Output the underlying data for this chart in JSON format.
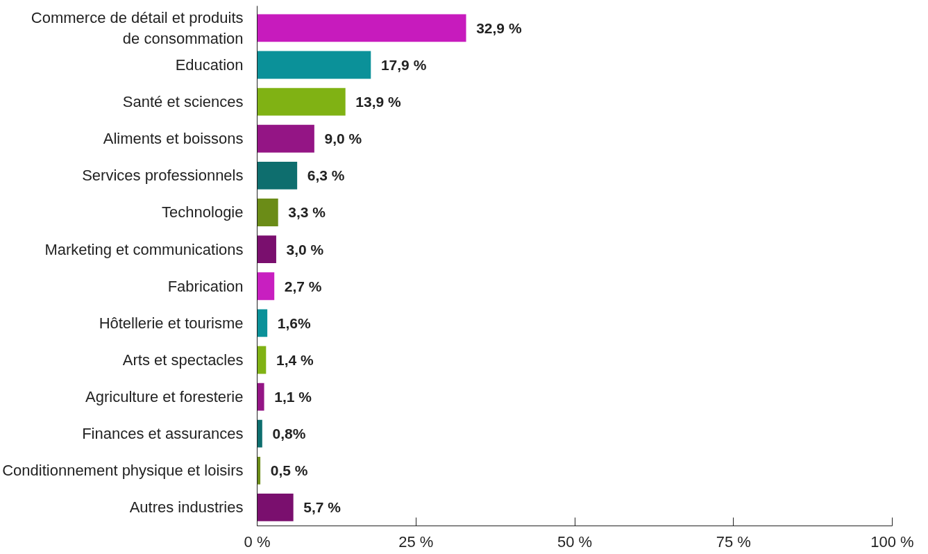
{
  "chart_data": {
    "type": "bar",
    "orientation": "horizontal",
    "categories": [
      "Commerce de détail et produits\nde consommation",
      "Education",
      "Santé et sciences",
      "Aliments et boissons",
      "Services professionnels",
      "Technologie",
      "Marketing et communications",
      "Fabrication",
      "Hôtellerie et tourisme",
      "Arts et spectacles",
      "Agriculture et foresterie",
      "Finances et assurances",
      "Conditionnement physique et loisirs",
      "Autres industries"
    ],
    "values": [
      32.9,
      17.9,
      13.9,
      9.0,
      6.3,
      3.3,
      3.0,
      2.7,
      1.6,
      1.4,
      1.1,
      0.8,
      0.5,
      5.7
    ],
    "colors": [
      "#c71bbd",
      "#0b9199",
      "#80b214",
      "#941585",
      "#0e6e6e",
      "#6b8c17",
      "#7a0f6e",
      "#c81fc0",
      "#0b9199",
      "#80b214",
      "#941585",
      "#0e6e6e",
      "#6b8c17",
      "#7a0f6e"
    ],
    "value_labels": [
      "32,9 %",
      "17,9 %",
      "13,9 %",
      "9,0 %",
      "6,3 %",
      "3,3 %",
      "3,0 %",
      "2,7  %",
      "1,6%",
      "1,4 %",
      "1,1  %",
      "0,8%",
      "0,5 %",
      "5,7 %"
    ],
    "xlim": [
      0,
      100
    ],
    "xticks": [
      {
        "value": 0,
        "label": "0 %"
      },
      {
        "value": 25,
        "label": "25 %"
      },
      {
        "value": 50,
        "label": "50 %"
      },
      {
        "value": 75,
        "label": "75 %"
      },
      {
        "value": 100,
        "label": "100 %"
      }
    ]
  }
}
